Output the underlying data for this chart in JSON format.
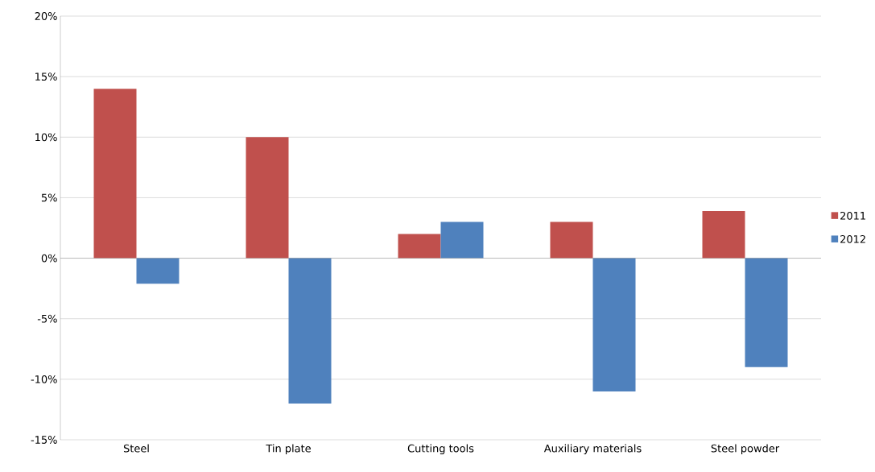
{
  "chart_data": {
    "type": "bar",
    "categories": [
      "Steel",
      "Tin plate",
      "Cutting tools",
      "Auxiliary materials",
      "Steel powder"
    ],
    "series": [
      {
        "name": "2011",
        "color": "#c0504d",
        "values": [
          14,
          10,
          2,
          3,
          3.9
        ]
      },
      {
        "name": "2012",
        "color": "#4f81bd",
        "values": [
          -2.1,
          -12,
          3,
          -11,
          -9
        ]
      }
    ],
    "ylim": [
      -15,
      20
    ],
    "yticks": [
      {
        "value": -15,
        "label": "-15%"
      },
      {
        "value": -10,
        "label": "-10%"
      },
      {
        "value": -5,
        "label": "-5%"
      },
      {
        "value": 0,
        "label": "0%"
      },
      {
        "value": 5,
        "label": "5%"
      },
      {
        "value": 10,
        "label": "10%"
      },
      {
        "value": 15,
        "label": "15%"
      },
      {
        "value": 20,
        "label": "20%"
      }
    ],
    "grid": "y",
    "legend": "right"
  }
}
